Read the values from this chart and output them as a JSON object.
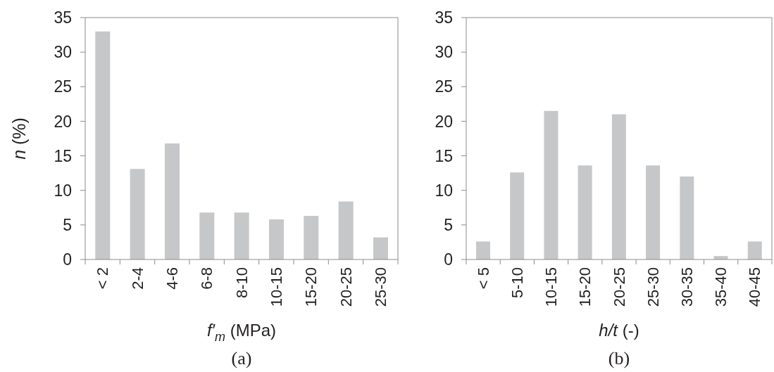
{
  "chart_data": [
    {
      "type": "bar",
      "title": "(a)",
      "xlabel": "f′$_{m}$ (MPa)",
      "ylabel": "n (%)",
      "categories": [
        "< 2",
        "2-4",
        "4-6",
        "6-8",
        "8-10",
        "10-15",
        "15-20",
        "20-25",
        "25-30"
      ],
      "values": [
        33.0,
        13.1,
        16.8,
        6.8,
        6.8,
        5.8,
        6.3,
        8.4,
        3.2
      ],
      "color": "#c6c7c9",
      "ylim": [
        0,
        35
      ],
      "yticks": [
        0,
        5,
        10,
        15,
        20,
        25,
        30,
        35
      ]
    },
    {
      "type": "bar",
      "title": "(b)",
      "xlabel": "h/t (-)",
      "categories": [
        "< 5",
        "5-10",
        "10-15",
        "15-20",
        "20-25",
        "25-30",
        "30-35",
        "35-40",
        "40-45"
      ],
      "values": [
        2.6,
        12.6,
        21.5,
        13.6,
        21.0,
        13.6,
        12.0,
        0.5,
        2.6
      ],
      "color": "#c6c7c9",
      "ylim": [
        0,
        35
      ],
      "yticks": [
        0,
        5,
        10,
        15,
        20,
        25,
        30,
        35
      ]
    }
  ]
}
